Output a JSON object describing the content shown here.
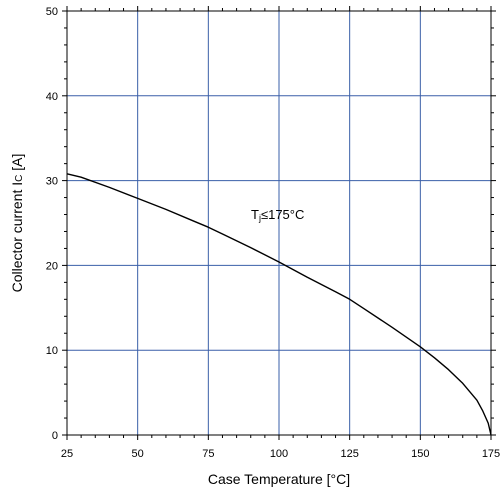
{
  "chart_data": {
    "type": "line",
    "title": "",
    "xlabel": "Case Temperature [°C]",
    "ylabel": "Collector current Iₙ [A]",
    "ylabel_parts": {
      "main": "Collector current I",
      "sub": "C",
      "unit": " [A]"
    },
    "xlim": [
      25,
      175
    ],
    "ylim": [
      0,
      50
    ],
    "xticks": [
      25,
      50,
      75,
      100,
      125,
      150,
      175
    ],
    "yticks": [
      0,
      10,
      20,
      30,
      40,
      50
    ],
    "grid": true,
    "grid_color": "#3a5fa8",
    "line_color": "#000000",
    "series": [
      {
        "x": [
          25,
          30,
          40,
          50,
          60,
          70,
          75,
          80,
          90,
          100,
          110,
          120,
          125,
          130,
          140,
          150,
          155,
          160,
          165,
          170,
          172,
          174,
          175
        ],
        "y": [
          30.8,
          30.4,
          29.2,
          27.9,
          26.6,
          25.2,
          24.5,
          23.7,
          22.1,
          20.4,
          18.6,
          16.9,
          16.0,
          14.9,
          12.7,
          10.4,
          9.1,
          7.7,
          6.1,
          4.1,
          2.9,
          1.4,
          0
        ]
      }
    ],
    "annotations": [
      {
        "text_main": "T",
        "text_sub": "j",
        "text_rest": "≤175°C",
        "x": 100,
        "y": 26
      }
    ]
  }
}
